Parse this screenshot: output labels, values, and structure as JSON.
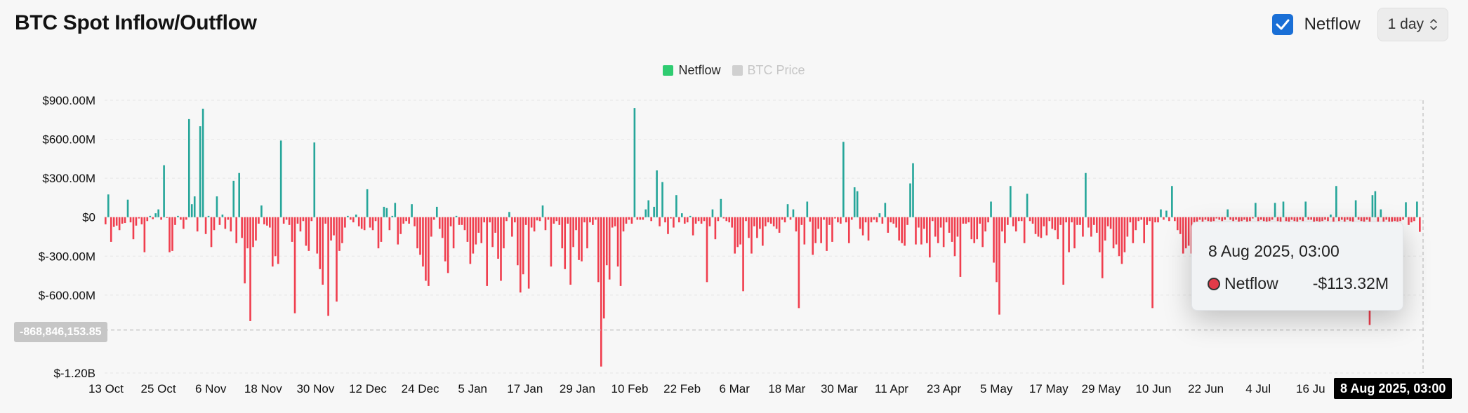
{
  "header": {
    "title": "BTC Spot Inflow/Outflow",
    "netflow_toggle_label": "Netflow",
    "netflow_checked": true,
    "interval_label": "1 day"
  },
  "legend": {
    "items": [
      {
        "label": "Netflow",
        "color": "#2fcc71",
        "active": true
      },
      {
        "label": "BTC Price",
        "color": "#d0d0d0",
        "active": false
      }
    ]
  },
  "tooltip": {
    "date": "8 Aug 2025, 03:00",
    "series": "Netflow",
    "value": "-$113.32M"
  },
  "crosshair": {
    "x_label": "8 Aug 2025, 03:00",
    "y_label": "-868,846,153.85"
  },
  "colors": {
    "positive": "#26a69a",
    "negative": "#f03e4e",
    "accent": "#1a6fd6"
  },
  "chart_data": {
    "type": "bar",
    "title": "BTC Spot Inflow/Outflow",
    "series": [
      {
        "name": "Netflow"
      }
    ],
    "y_unit": "USD",
    "ylim": [
      -1200000000,
      900000000
    ],
    "y_ticks": [
      {
        "value": 900000000,
        "label": "$900.00M"
      },
      {
        "value": 600000000,
        "label": "$600.00M"
      },
      {
        "value": 300000000,
        "label": "$300.00M"
      },
      {
        "value": 0,
        "label": "$0"
      },
      {
        "value": -300000000,
        "label": "$-300.00M"
      },
      {
        "value": -600000000,
        "label": "$-600.00M"
      },
      {
        "value": -1200000000,
        "label": "$-1.20B"
      }
    ],
    "x_ticks": [
      "13 Oct",
      "25 Oct",
      "6 Nov",
      "18 Nov",
      "30 Nov",
      "12 Dec",
      "24 Dec",
      "5 Jan",
      "17 Jan",
      "29 Jan",
      "10 Feb",
      "22 Feb",
      "6 Mar",
      "18 Mar",
      "30 Mar",
      "11 Apr",
      "23 Apr",
      "5 May",
      "17 May",
      "29 May",
      "10 Jun",
      "22 Jun",
      "4 Jul",
      "16 Ju"
    ],
    "grid": true,
    "values_musd": [
      -55,
      175,
      -190,
      -75,
      -65,
      -100,
      -50,
      -45,
      135,
      -40,
      -170,
      -65,
      -10,
      -55,
      -270,
      -30,
      10,
      -15,
      30,
      60,
      -20,
      400,
      -5,
      -270,
      -260,
      -60,
      10,
      -20,
      -90,
      -20,
      755,
      100,
      160,
      -110,
      700,
      835,
      -130,
      10,
      -230,
      -100,
      160,
      -60,
      20,
      -90,
      -20,
      -110,
      280,
      -200,
      340,
      -160,
      -510,
      -240,
      -800,
      -230,
      -180,
      -50,
      90,
      -55,
      -65,
      -80,
      -380,
      -300,
      -360,
      590,
      -50,
      -20,
      -60,
      -190,
      -740,
      -50,
      -110,
      -30,
      -220,
      -260,
      -30,
      575,
      -280,
      -400,
      -520,
      -50,
      -760,
      -180,
      -140,
      -650,
      -260,
      -200,
      -80,
      10,
      -20,
      -40,
      20,
      -70,
      -90,
      -100,
      215,
      -80,
      -100,
      -30,
      -240,
      -190,
      80,
      70,
      -100,
      10,
      110,
      -210,
      -130,
      -50,
      -30,
      -50,
      100,
      -70,
      -240,
      -290,
      -380,
      -490,
      -530,
      -150,
      -20,
      80,
      -90,
      -160,
      -340,
      -430,
      -70,
      -240,
      10,
      -60,
      -60,
      -100,
      -190,
      -360,
      -280,
      -210,
      -120,
      -200,
      -40,
      -530,
      -40,
      -230,
      -120,
      -320,
      -490,
      -240,
      -30,
      40,
      -150,
      -40,
      -370,
      -580,
      -440,
      -60,
      -550,
      -80,
      -110,
      -25,
      -30,
      90,
      -100,
      -20,
      -380,
      -50,
      -30,
      -60,
      -240,
      -400,
      -50,
      -520,
      -230,
      -100,
      -330,
      -340,
      -40,
      -240,
      -40,
      -60,
      -20,
      -500,
      -1150,
      -780,
      -370,
      -480,
      -80,
      -70,
      -380,
      -530,
      -110,
      -50,
      -20,
      -50,
      840,
      -20,
      -20,
      -20,
      60,
      130,
      -30,
      80,
      360,
      -70,
      270,
      -40,
      -130,
      -10,
      -80,
      170,
      -40,
      30,
      -50,
      -40,
      10,
      -140,
      -50,
      -30,
      -50,
      -30,
      -500,
      -70,
      60,
      -170,
      -30,
      140,
      -10,
      -30,
      -40,
      -80,
      -280,
      -230,
      -210,
      -570,
      -30,
      -160,
      -280,
      -70,
      -160,
      -90,
      -220,
      -70,
      -40,
      -50,
      -70,
      -90,
      -120,
      -20,
      -40,
      100,
      -20,
      60,
      -110,
      -700,
      -60,
      -210,
      120,
      -35,
      -290,
      -200,
      -90,
      -200,
      -20,
      -260,
      -60,
      -190,
      -10,
      -40,
      -50,
      580,
      -40,
      -200,
      -20,
      230,
      200,
      -90,
      -140,
      -40,
      -180,
      -40,
      -20,
      -40,
      30,
      -50,
      110,
      -120,
      -40,
      -50,
      -80,
      -180,
      -200,
      -220,
      -60,
      260,
      415,
      -210,
      -80,
      -210,
      -90,
      -200,
      -310,
      -30,
      -150,
      -200,
      -80,
      -230,
      -40,
      -120,
      -190,
      -300,
      -150,
      -460,
      -50,
      -50,
      -40,
      -170,
      -200,
      -170,
      -50,
      -230,
      -110,
      -40,
      120,
      -350,
      -500,
      -750,
      -110,
      -200,
      -60,
      240,
      -70,
      -110,
      -30,
      -30,
      -200,
      180,
      -30,
      -50,
      -130,
      -150,
      -160,
      -70,
      -140,
      -30,
      -90,
      -100,
      -170,
      -60,
      -520,
      -40,
      -270,
      -40,
      -240,
      -60,
      -60,
      -150,
      340,
      -80,
      -150,
      -60,
      -120,
      -270,
      -470,
      -180,
      -70,
      -90,
      -240,
      -210,
      -300,
      -360,
      -270,
      -150,
      -40,
      -200,
      -100,
      -30,
      -20,
      -200,
      -60,
      -30,
      -700,
      -40,
      -40,
      60,
      -20,
      50,
      -30,
      240,
      -30,
      -100,
      -130,
      -280,
      -240,
      -220,
      -280,
      -40,
      -120,
      -20,
      -40,
      -20,
      -30,
      -60,
      -30,
      -10,
      -20,
      -30,
      -20,
      60,
      -20,
      -30,
      -20,
      -40,
      -30,
      -20,
      -40,
      -30,
      -10,
      110,
      -30,
      -20,
      -30,
      -40,
      -30,
      -20,
      110,
      -30,
      -40,
      120,
      -30,
      -40,
      -20,
      -30,
      -40,
      -20,
      -30,
      120,
      -20,
      -20,
      -40,
      -30,
      -40,
      -30,
      -20,
      -30,
      20,
      -40,
      240,
      -30,
      -20,
      -40,
      -20,
      -30,
      -40,
      130,
      -20,
      -30,
      -40,
      -20,
      -830,
      170,
      200,
      -40,
      60,
      -40,
      -20,
      -50,
      -40,
      -30,
      -60,
      -30,
      -20,
      115,
      -60,
      -40,
      -30,
      120,
      -113
    ]
  }
}
